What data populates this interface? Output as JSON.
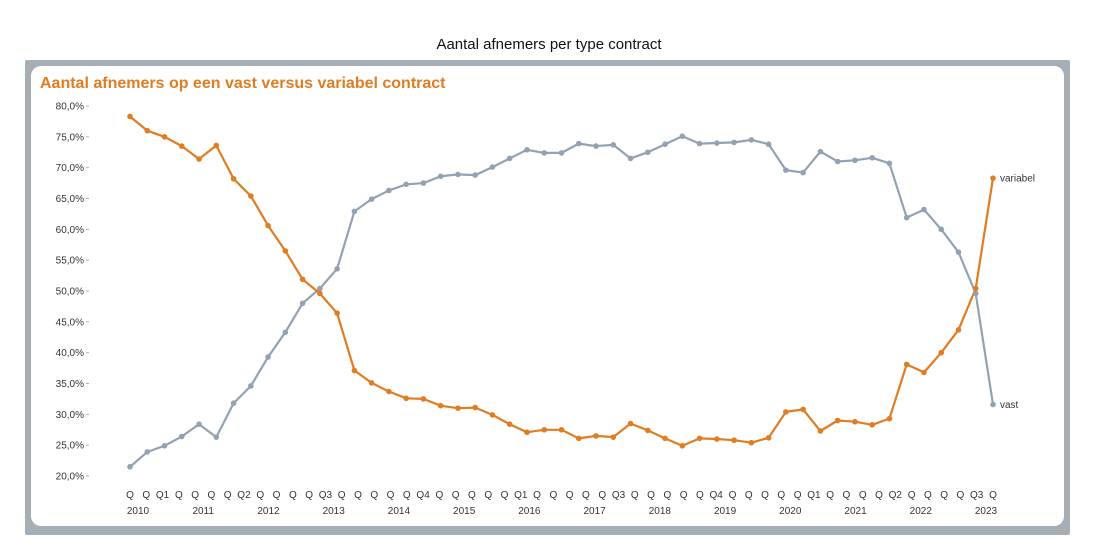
{
  "page_title": "Aantal afnemers per type contract",
  "chart_data": {
    "type": "line",
    "title": "Aantal afnemers op een vast versus variabel contract",
    "xlabel": "",
    "ylabel": "",
    "ylim": [
      20,
      80
    ],
    "y_ticks": [
      "80,0%",
      "75,0%",
      "70,0%",
      "65,0%",
      "60,0%",
      "55,0%",
      "50,0%",
      "45,0%",
      "40,0%",
      "35,0%",
      "30,0%",
      "25,0%",
      "20,0%"
    ],
    "grid": false,
    "x_quarter_labels": [
      "Q",
      "Q",
      "Q1",
      "Q",
      "Q",
      "Q",
      "Q",
      "Q2",
      "Q",
      "Q",
      "Q",
      "Q",
      "Q3",
      "Q",
      "Q",
      "Q",
      "Q",
      "Q",
      "Q4",
      "Q",
      "Q",
      "Q",
      "Q",
      "Q",
      "Q1",
      "Q",
      "Q",
      "Q",
      "Q",
      "Q",
      "Q3",
      "Q",
      "Q",
      "Q",
      "Q",
      "Q",
      "Q4",
      "Q",
      "Q",
      "Q",
      "Q",
      "Q",
      "Q1",
      "Q",
      "Q",
      "Q",
      "Q",
      "Q2",
      "Q",
      "Q",
      "Q",
      "Q",
      "Q3",
      "Q"
    ],
    "x_year_labels": [
      "2010",
      "2011",
      "2012",
      "2013",
      "2014",
      "2015",
      "2016",
      "2017",
      "2018",
      "2019",
      "2020",
      "2021",
      "2022",
      "2023"
    ],
    "colors": {
      "vast": "#92a2b3",
      "variabel": "#e07c22"
    },
    "series": [
      {
        "name": "variabel",
        "values": [
          78.3,
          76.0,
          75.0,
          73.5,
          71.4,
          73.6,
          68.2,
          65.4,
          60.6,
          56.5,
          51.9,
          49.6,
          46.4,
          37.1,
          35.1,
          33.7,
          32.6,
          32.5,
          31.4,
          31.0,
          31.1,
          29.9,
          28.4,
          27.1,
          27.5,
          27.5,
          26.1,
          26.5,
          26.3,
          28.5,
          27.4,
          26.1,
          24.9,
          26.1,
          26.0,
          25.8,
          25.4,
          26.2,
          30.4,
          30.8,
          27.3,
          29.0,
          28.8,
          28.3,
          29.3,
          38.1,
          36.8,
          40.0,
          43.7,
          50.4,
          68.3
        ]
      },
      {
        "name": "vast",
        "values": [
          21.5,
          23.9,
          24.9,
          26.4,
          28.4,
          26.3,
          31.8,
          34.6,
          39.3,
          43.3,
          48.0,
          50.4,
          53.6,
          62.9,
          64.9,
          66.3,
          67.3,
          67.5,
          68.6,
          68.9,
          68.8,
          70.1,
          71.5,
          72.9,
          72.4,
          72.4,
          73.9,
          73.5,
          73.7,
          71.5,
          72.5,
          73.8,
          75.1,
          73.9,
          74.0,
          74.1,
          74.5,
          73.8,
          69.6,
          69.2,
          72.6,
          71.0,
          71.2,
          71.6,
          70.7,
          61.9,
          63.2,
          60.0,
          56.3,
          49.6,
          31.6
        ]
      }
    ]
  }
}
